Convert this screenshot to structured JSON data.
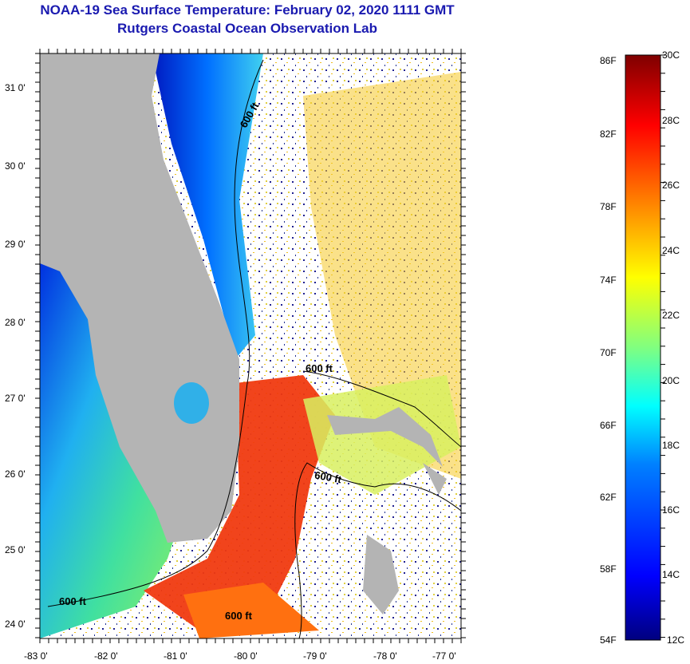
{
  "title": "NOAA-19 Sea Surface Temperature:  February 02, 2020 1111 GMT",
  "subtitle": "Rutgers Coastal Ocean Observation Lab",
  "map": {
    "lat_ticks": [
      "31 0'",
      "30 0'",
      "29 0'",
      "28 0'",
      "27 0'",
      "26 0'",
      "25 0'",
      "24 0'"
    ],
    "lon_ticks": [
      "-83 0'",
      "-82 0'",
      "-81 0'",
      "-80 0'",
      "-79 0'",
      "-78 0'",
      "-77 0'"
    ],
    "contour_labels": [
      "600 ft",
      "600 ft",
      "600 ft",
      "600 ft",
      "600 ft"
    ]
  },
  "colorbar": {
    "fahrenheit_labels": [
      "86F",
      "82F",
      "78F",
      "74F",
      "70F",
      "66F",
      "62F",
      "58F",
      "54F"
    ],
    "celsius_labels": [
      "30C",
      "28C",
      "26C",
      "24C",
      "22C",
      "20C",
      "18C",
      "16C",
      "14C",
      "12C"
    ],
    "colors": [
      "#00007f",
      "#0000ff",
      "#0080ff",
      "#00ffff",
      "#80ff80",
      "#ffff00",
      "#ff8000",
      "#ff0000",
      "#7f0000"
    ]
  },
  "colors": {
    "title": "#1a1ab0",
    "land": "#b4b4b4"
  }
}
